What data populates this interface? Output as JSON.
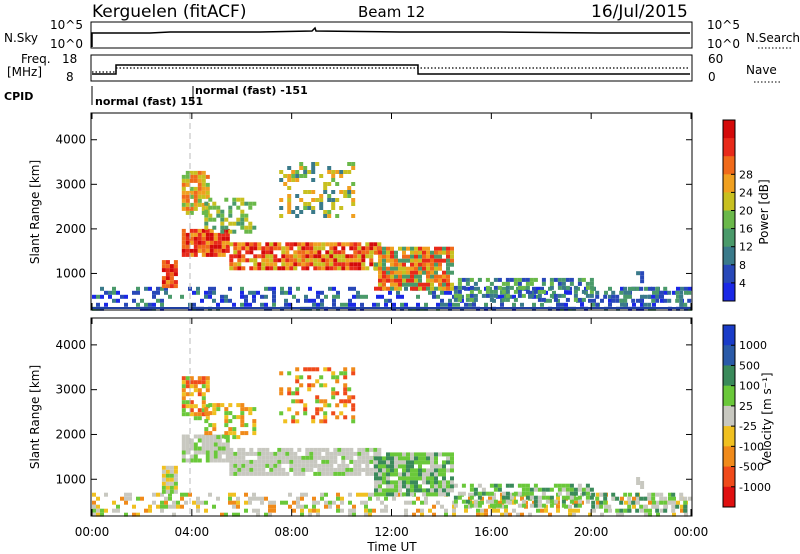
{
  "header": {
    "station": "Kerguelen (fitACF)",
    "beam": "Beam 12",
    "date": "16/Jul/2015"
  },
  "nsky_panel": {
    "left_label": "N.Sky",
    "right_label": "N.Search",
    "tick_top": "10^5",
    "tick_bottom": "10^0"
  },
  "freq_panel": {
    "left_label_line1": "Freq.",
    "left_label_line2": "[MHz]",
    "left_tick_top": "18",
    "left_tick_bottom": "8",
    "right_label": "Nave",
    "right_tick_top": "60",
    "right_tick_bottom": "0"
  },
  "cpid_panel": {
    "label": "CPID",
    "modes": [
      "normal (fast) 151",
      "normal (fast) -151"
    ]
  },
  "colors": {
    "panel_outline": "#000000",
    "ground_line": "#1f3fa0",
    "marker_dash": "#bbbbbb"
  },
  "chart_data": [
    {
      "type": "heatmap",
      "name": "power",
      "ylabel": "Slant Range [km]",
      "yticks": [
        "1000",
        "2000",
        "3000",
        "4000"
      ],
      "xticks": [
        "00:00",
        "04:00",
        "08:00",
        "12:00",
        "16:00",
        "20:00",
        "00:00"
      ],
      "xlabel": "",
      "colorbar_label": "Power [dB]",
      "colorbar_ticks": [
        "4",
        "8",
        "12",
        "16",
        "20",
        "24",
        "28"
      ],
      "colorbar_colors": [
        "#1a28e6",
        "#2848b8",
        "#3a7a8a",
        "#4a9a6a",
        "#6ab84a",
        "#c8c020",
        "#f0a020",
        "#f06a1a",
        "#e82a1a",
        "#d40a0a"
      ],
      "x_range_hours": [
        0,
        24
      ],
      "y_range_km": [
        180,
        4600
      ]
    },
    {
      "type": "heatmap",
      "name": "velocity",
      "ylabel": "Slant Range [km]",
      "yticks": [
        "1000",
        "2000",
        "3000",
        "4000"
      ],
      "xticks": [
        "00:00",
        "04:00",
        "08:00",
        "12:00",
        "16:00",
        "20:00",
        "00:00"
      ],
      "xlabel": "Time UT",
      "colorbar_label": "Velocity [m s⁻¹]",
      "colorbar_ticks": [
        "1000",
        "500",
        "100",
        "25",
        "-25",
        "-100",
        "-500",
        "-1000"
      ],
      "colorbar_colors": [
        "#1a3cc8",
        "#2a5aa8",
        "#3a8a5a",
        "#6ac83a",
        "#c8c8c0",
        "#f0c020",
        "#f08a1a",
        "#f04a1a",
        "#e01010"
      ],
      "x_range_hours": [
        0,
        24
      ],
      "y_range_km": [
        180,
        4600
      ]
    }
  ]
}
